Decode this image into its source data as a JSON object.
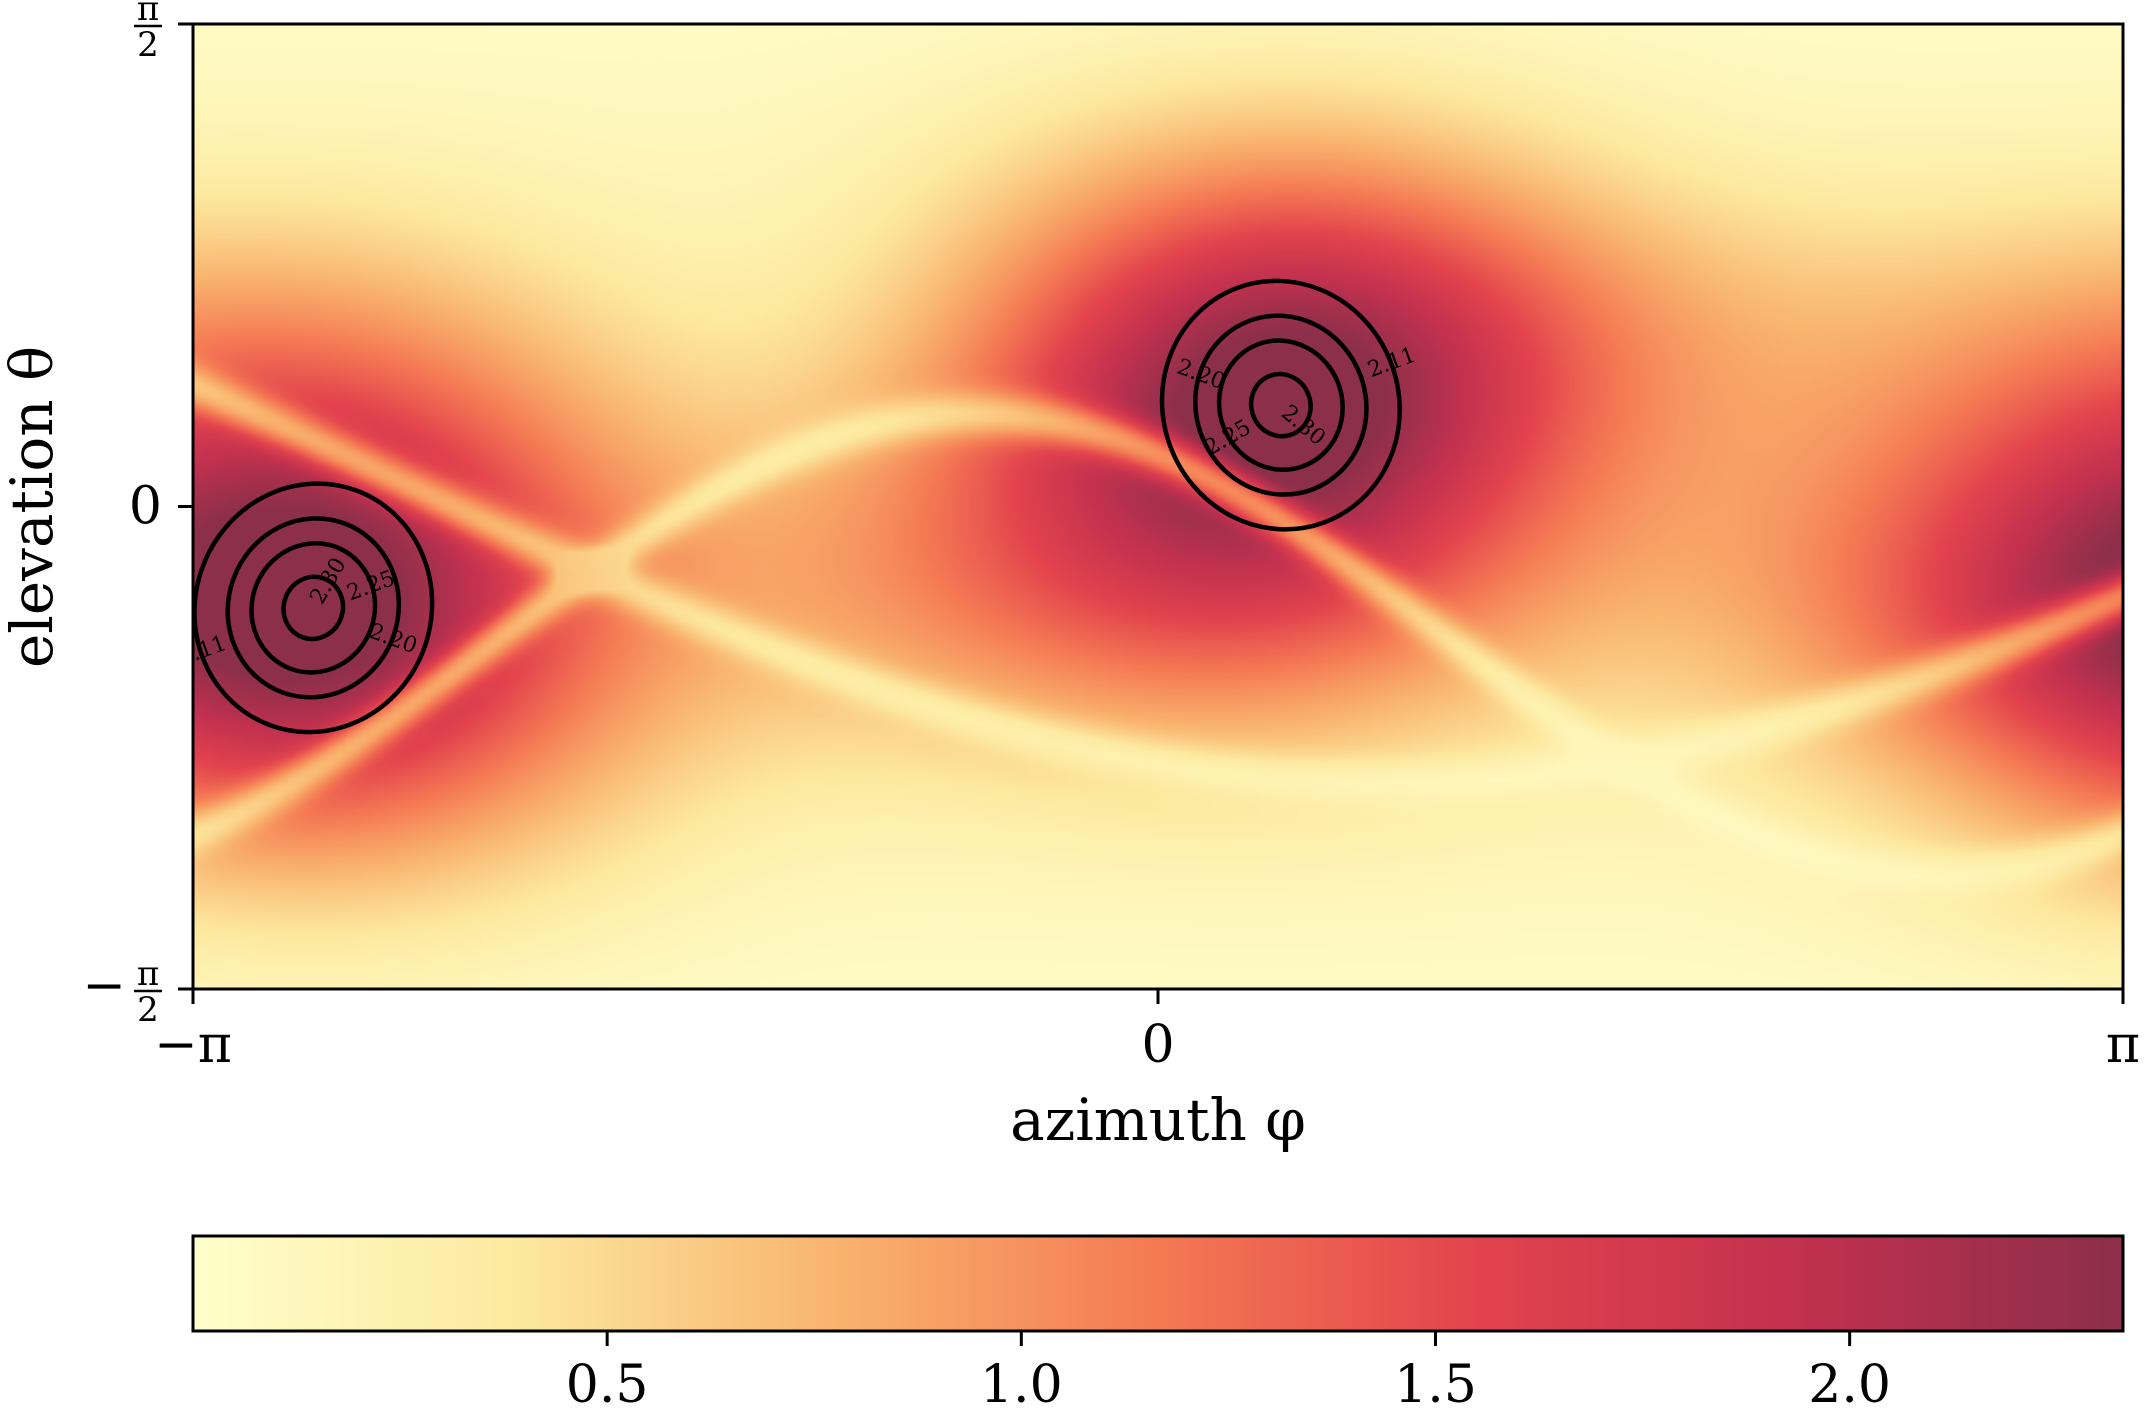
{
  "chart_data": {
    "type": "heatmap",
    "xlabel": "azimuth φ",
    "ylabel": "elevation θ",
    "xlim": [
      -3.14159,
      3.14159
    ],
    "ylim": [
      -1.5708,
      1.5708
    ],
    "xticks": [
      {
        "value": -3.14159,
        "label": "−π"
      },
      {
        "value": 0,
        "label": "0"
      },
      {
        "value": 3.14159,
        "label": "π"
      }
    ],
    "yticks": [
      {
        "value": 1.5708,
        "num": "π",
        "den": "2",
        "sign": ""
      },
      {
        "value": 0,
        "label": "0"
      },
      {
        "value": -1.5708,
        "num": "π",
        "den": "2",
        "sign": "−"
      }
    ],
    "colormap": "YlOrRd-like (light yellow → orange → red → dark crimson)",
    "colors": [
      "#ffffcc",
      "#fde9a0",
      "#f9b46e",
      "#f57a54",
      "#e3434d",
      "#c2314f",
      "#8c2f4a"
    ],
    "value_range": [
      0,
      2.33
    ],
    "peaks": [
      {
        "azimuth": 0.4,
        "elevation": 0.33,
        "value": 2.33
      },
      {
        "azimuth": -2.75,
        "elevation": -0.33,
        "value": 2.33
      }
    ],
    "contours": {
      "levels": [
        2.11,
        2.2,
        2.25,
        2.3
      ],
      "labels": [
        "2.11",
        "2.20",
        "2.25",
        "2.30"
      ]
    },
    "colorbar": {
      "orientation": "horizontal",
      "ticks": [
        "0.5",
        "1.0",
        "1.5",
        "2.0"
      ],
      "tick_values": [
        0.5,
        1.0,
        1.5,
        2.0
      ]
    }
  }
}
